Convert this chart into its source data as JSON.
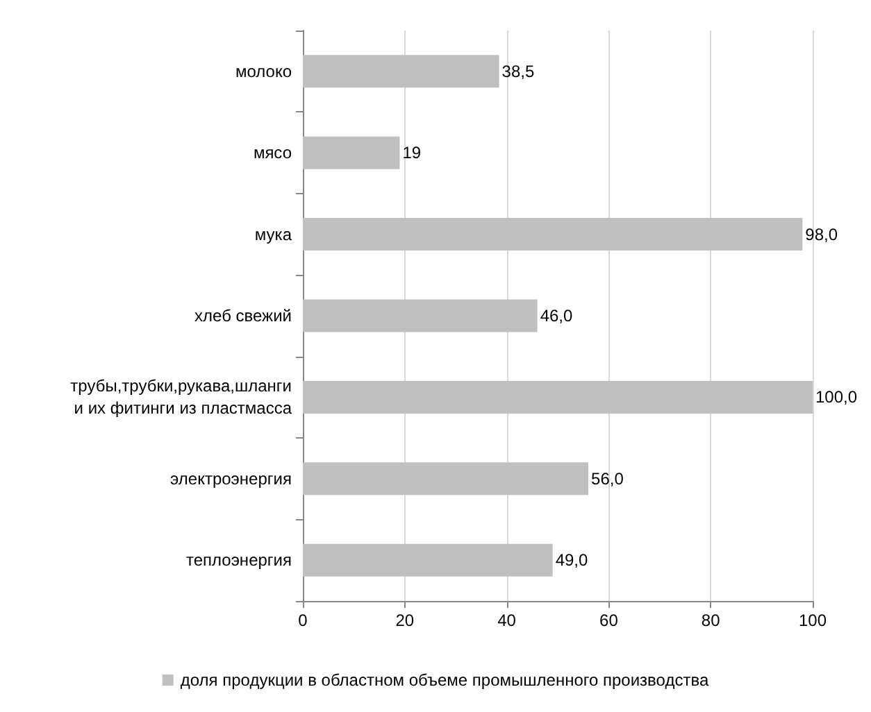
{
  "chart_data": {
    "type": "bar",
    "orientation": "horizontal",
    "categories": [
      "молоко",
      "мясо",
      "мука",
      "хлеб свежий",
      "трубы,трубки,рукава,шланги\nи их фитинги из пластмасса",
      "электроэнергия",
      "теплоэнергия"
    ],
    "series": [
      {
        "name": "доля продукции в областном объеме промышленного производства",
        "color": "#c0c0c0",
        "values": [
          38.5,
          19,
          98.0,
          46.0,
          100.0,
          56.0,
          49.0
        ],
        "value_labels": [
          "38,5",
          "19",
          "98,0",
          "46,0",
          "100,0",
          "56,0",
          "49,0"
        ]
      }
    ],
    "xlim": [
      0,
      100
    ],
    "xticks": [
      0,
      20,
      40,
      60,
      80,
      100
    ],
    "grid": "x",
    "legend": "bottom"
  }
}
